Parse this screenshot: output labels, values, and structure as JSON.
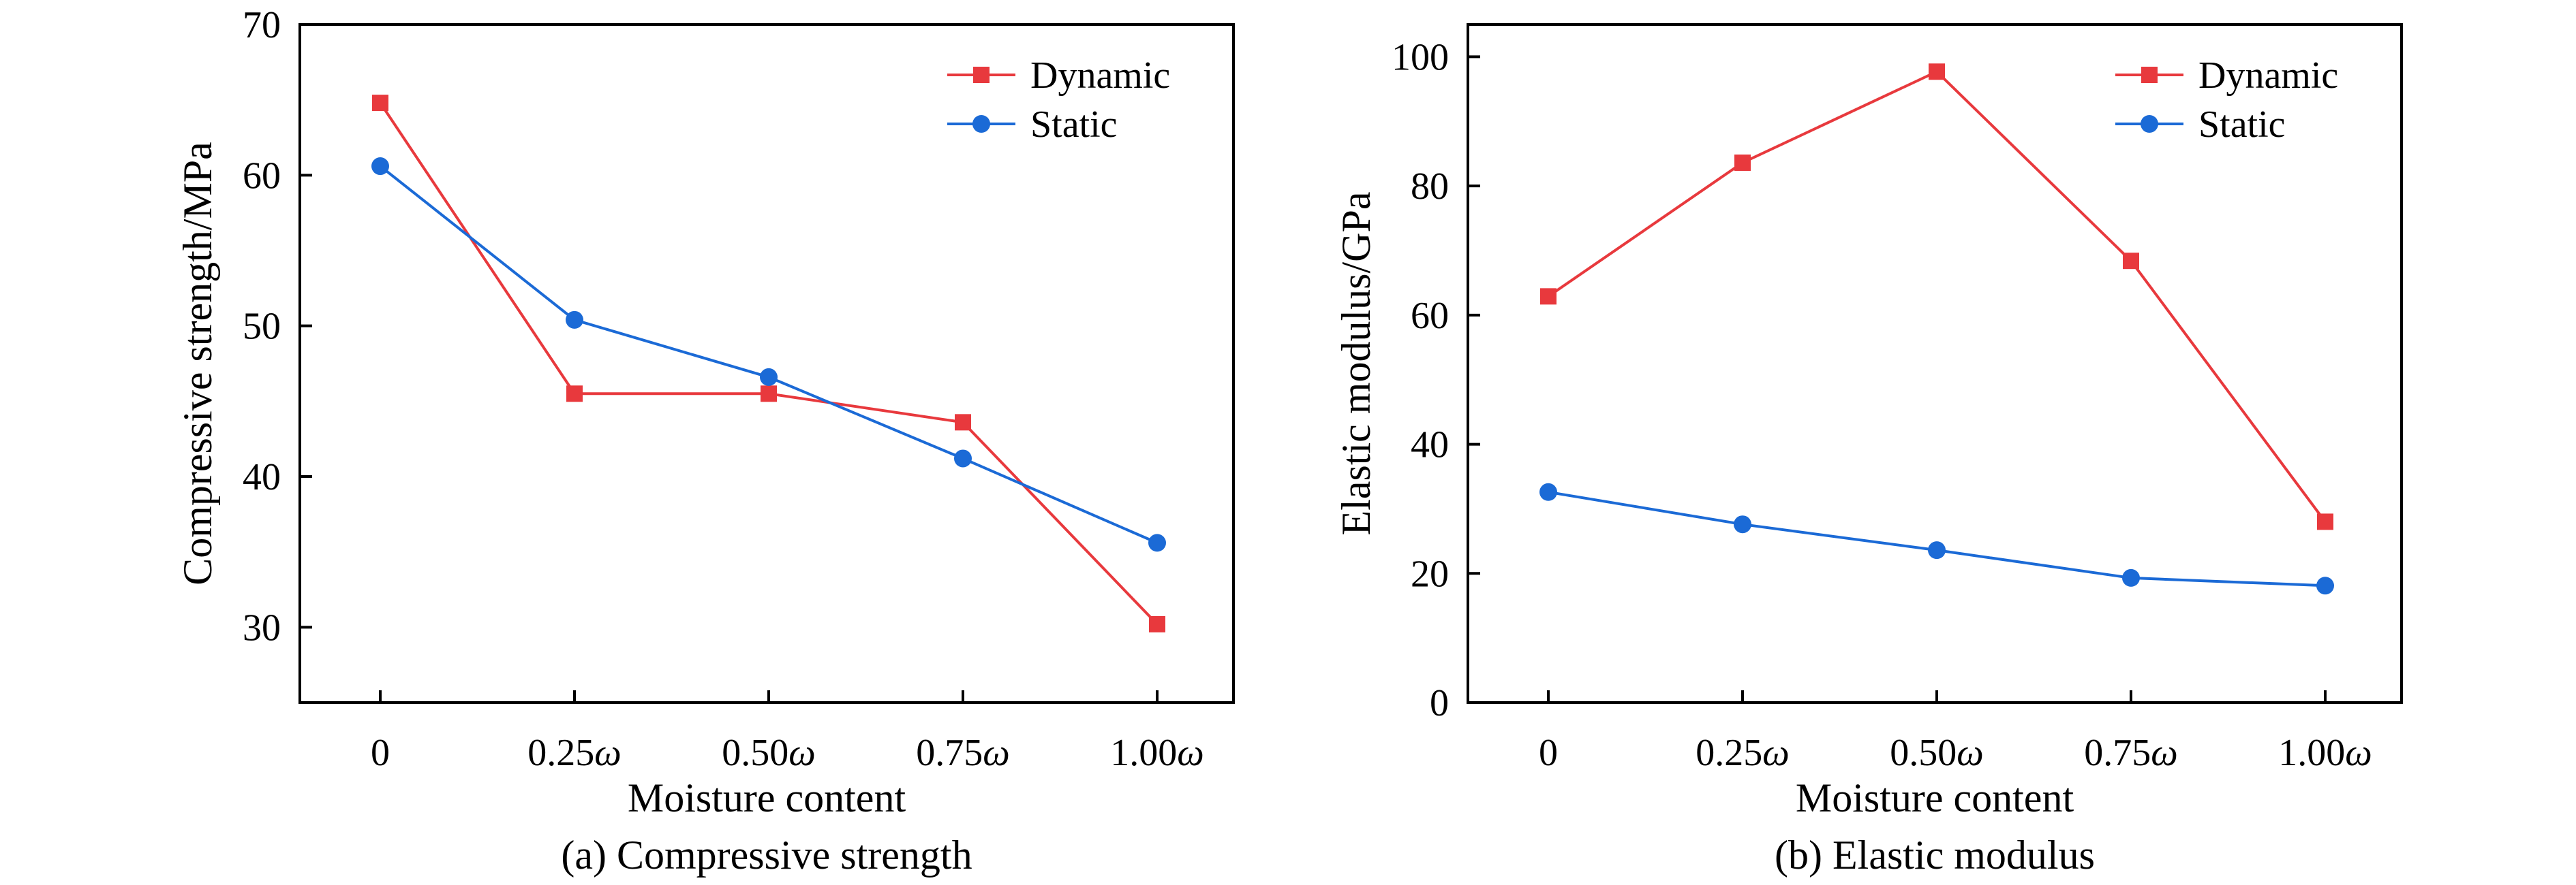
{
  "colors": {
    "dynamic": "#e8393d",
    "static": "#1b6ad6"
  },
  "chart_data": [
    {
      "type": "line",
      "caption": "(a) Compressive strength",
      "xlabel": "Moisture content",
      "ylabel": "Compressive strength/MPa",
      "categories": [
        "0",
        "0.25ω",
        "0.50ω",
        "0.75ω",
        "1.00ω"
      ],
      "ylim": [
        25,
        70
      ],
      "yticks": [
        30,
        40,
        50,
        60,
        70
      ],
      "legend_position": "top-right",
      "series": [
        {
          "name": "Dynamic",
          "marker": "square",
          "values": [
            64.8,
            45.5,
            45.5,
            43.6,
            30.2
          ]
        },
        {
          "name": "Static",
          "marker": "circle",
          "values": [
            60.6,
            50.4,
            46.6,
            41.2,
            35.6
          ]
        }
      ]
    },
    {
      "type": "line",
      "caption": "(b) Elastic modulus",
      "xlabel": "Moisture content",
      "ylabel": "Elastic modulus/GPa",
      "categories": [
        "0",
        "0.25ω",
        "0.50ω",
        "0.75ω",
        "1.00ω"
      ],
      "ylim": [
        0,
        105
      ],
      "yticks": [
        0,
        20,
        40,
        60,
        80,
        100
      ],
      "legend_position": "top-right",
      "series": [
        {
          "name": "Dynamic",
          "marker": "square",
          "values": [
            62.9,
            83.6,
            97.7,
            68.4,
            28.0
          ]
        },
        {
          "name": "Static",
          "marker": "circle",
          "values": [
            32.6,
            27.6,
            23.6,
            19.3,
            18.1
          ]
        }
      ]
    }
  ]
}
